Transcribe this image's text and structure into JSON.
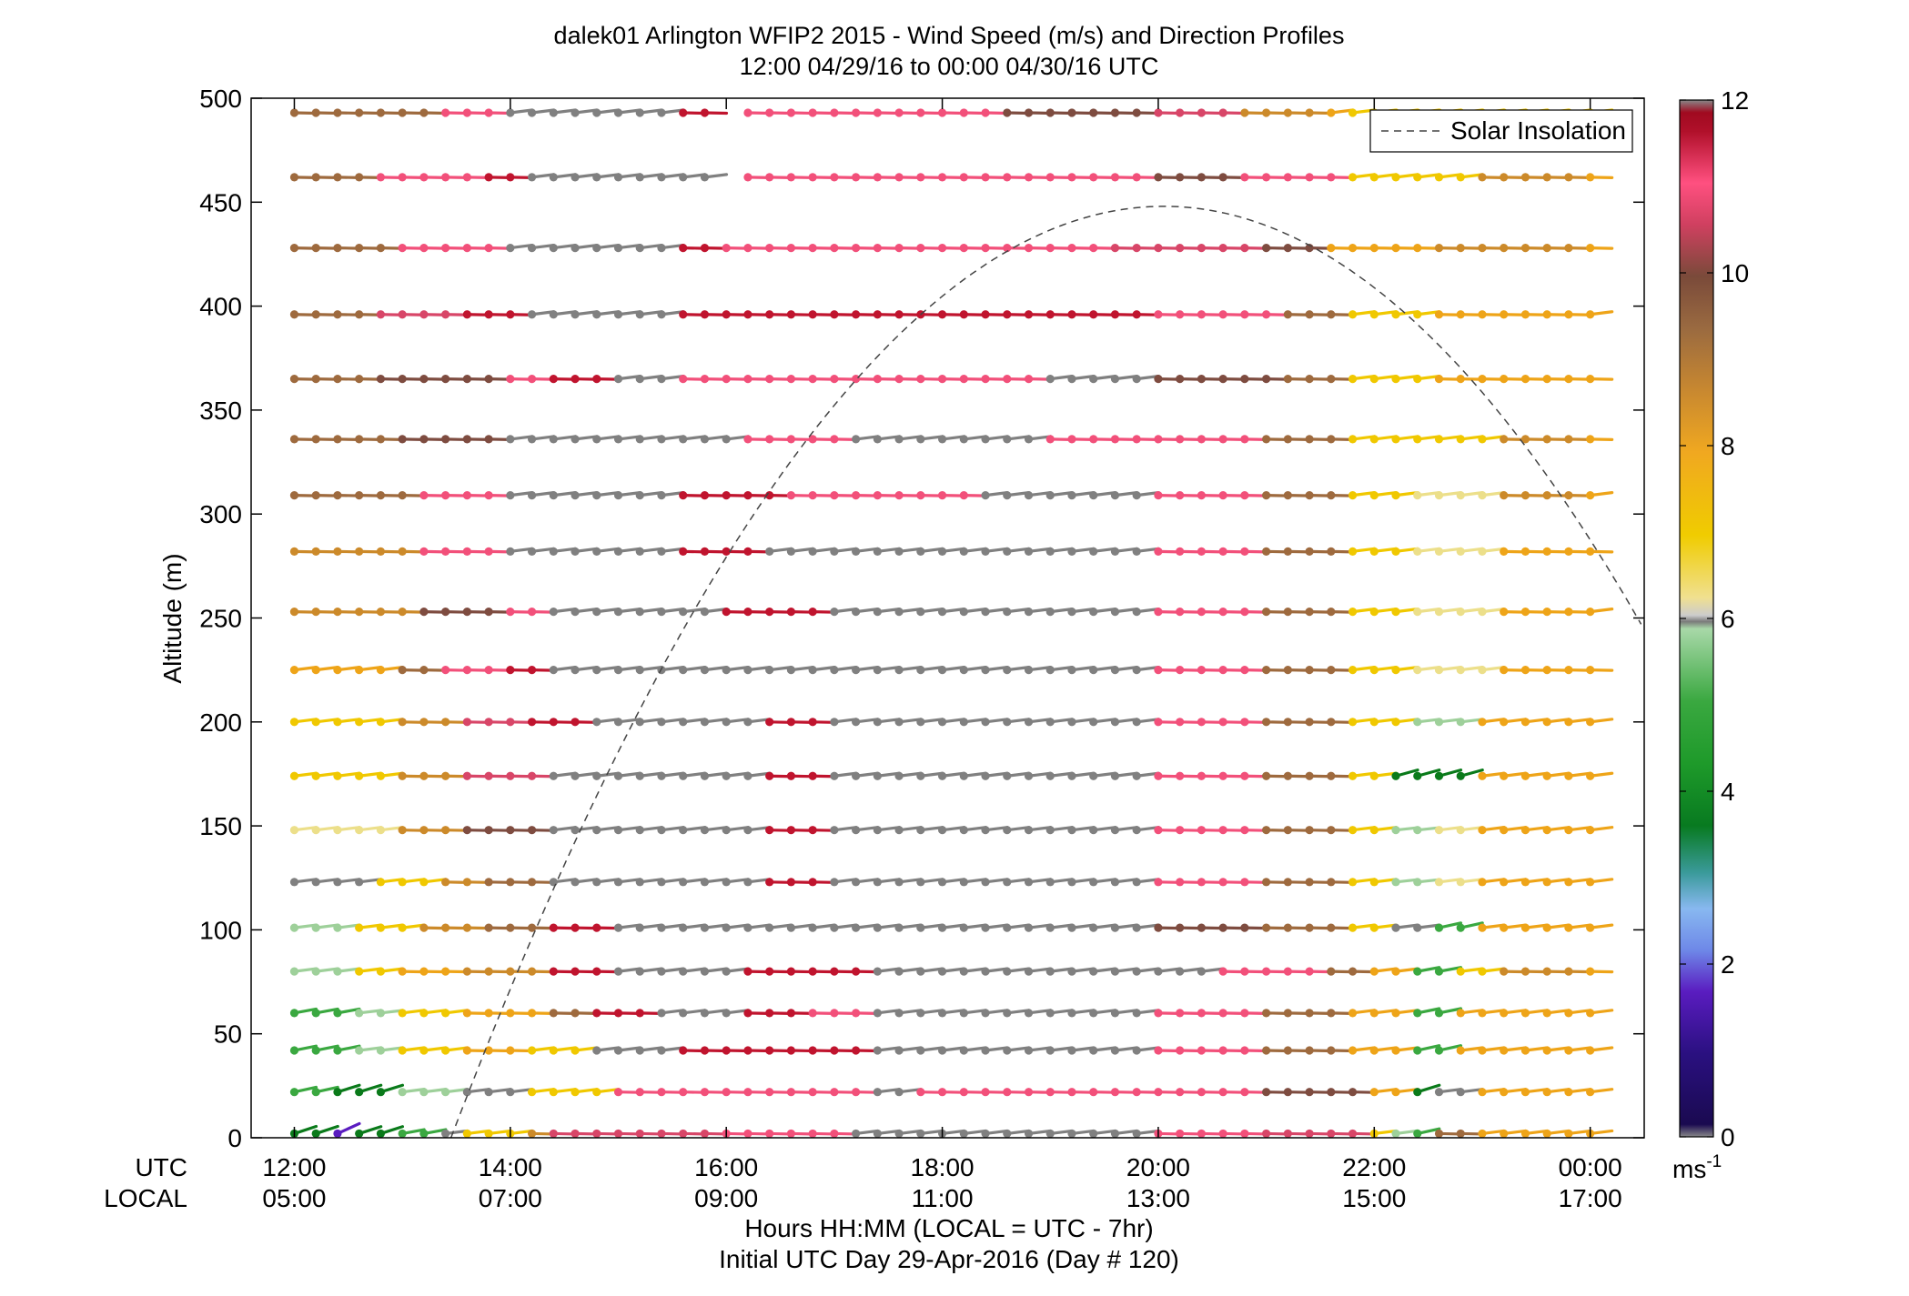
{
  "chart_data": {
    "type": "wind-barb-profile",
    "title": "dalek01 Arlington WFIP2 2015 - Wind Speed (m/s) and Direction Profiles",
    "subtitle": "12:00 04/29/16 to 00:00 04/30/16  UTC",
    "ylabel": "Altitude (m)",
    "xlabel": "Hours HH:MM  (LOCAL = UTC - 7hr)",
    "xlabel2": "Initial UTC Day 29-Apr-2016 (Day # 120)",
    "row_label_utc": "UTC",
    "row_label_local": "LOCAL",
    "x_ticks_utc": [
      "12:00",
      "14:00",
      "16:00",
      "18:00",
      "20:00",
      "22:00",
      "00:00"
    ],
    "x_ticks_local": [
      "05:00",
      "07:00",
      "09:00",
      "11:00",
      "13:00",
      "15:00",
      "17:00"
    ],
    "y_ticks": [
      "0",
      "50",
      "100",
      "150",
      "200",
      "250",
      "300",
      "350",
      "400",
      "450",
      "500"
    ],
    "ylim": [
      0,
      500
    ],
    "xlim_hours": [
      11.6,
      24.5
    ],
    "legend": {
      "entries": [
        "Solar Insolation"
      ],
      "placement": "top-right"
    },
    "colorbar": {
      "ticks": [
        "0",
        "2",
        "4",
        "6",
        "8",
        "10",
        "12"
      ],
      "unit": "ms",
      "unit_sup": "-1",
      "range": [
        0,
        12
      ]
    },
    "solar_insolation": {
      "peak_hour": 20.05,
      "peak_altitude": 448,
      "start_hour": 13.45
    },
    "sample_start_hour": 12.0,
    "sample_step_hours": 0.2,
    "gap_hours": [
      15.8,
      16.2
    ],
    "gap_levels_above": 455,
    "levels": [
      {
        "alt": 493,
        "w": [
          {
            "h": 12.0,
            "s": 9.2
          },
          {
            "h": 13.0,
            "s": 9.6
          },
          {
            "h": 13.4,
            "s": 10.9
          },
          {
            "h": 14.0,
            "s": 6.3
          },
          {
            "h": 15.6,
            "s": 11.7
          },
          {
            "h": 16.2,
            "s": 10.8
          },
          {
            "h": 18.5,
            "s": 10.0
          },
          {
            "h": 20.0,
            "s": 10.6
          },
          {
            "h": 20.8,
            "s": 8.6
          },
          {
            "h": 21.5,
            "s": 7.8
          },
          {
            "h": 21.8,
            "s": 7.1
          },
          {
            "h": 22.6,
            "s": 7.6
          }
        ]
      },
      {
        "alt": 462,
        "w": [
          {
            "h": 12.0,
            "s": 9.3
          },
          {
            "h": 12.8,
            "s": 10.9
          },
          {
            "h": 13.8,
            "s": 11.6
          },
          {
            "h": 14.2,
            "s": 6.3
          },
          {
            "h": 15.6,
            "s": 6.3
          },
          {
            "h": 16.2,
            "s": 10.8
          },
          {
            "h": 20.0,
            "s": 10.0
          },
          {
            "h": 20.8,
            "s": 10.8
          },
          {
            "h": 21.8,
            "s": 7.4
          },
          {
            "h": 23.0,
            "s": 8.6
          },
          {
            "h": 24.0,
            "s": 8.0
          }
        ]
      },
      {
        "alt": 428,
        "w": [
          {
            "h": 12.0,
            "s": 9.4
          },
          {
            "h": 13.0,
            "s": 10.8
          },
          {
            "h": 14.0,
            "s": 6.3
          },
          {
            "h": 15.5,
            "s": 11.5
          },
          {
            "h": 16.0,
            "s": 10.8
          },
          {
            "h": 19.5,
            "s": 10.6
          },
          {
            "h": 21.0,
            "s": 10.0
          },
          {
            "h": 21.5,
            "s": 8.2
          },
          {
            "h": 22.5,
            "s": 8.6
          },
          {
            "h": 24.0,
            "s": 8.2
          }
        ]
      },
      {
        "alt": 396,
        "w": [
          {
            "h": 12.0,
            "s": 9.4
          },
          {
            "h": 12.8,
            "s": 10.6
          },
          {
            "h": 13.6,
            "s": 11.5
          },
          {
            "h": 14.2,
            "s": 6.3
          },
          {
            "h": 15.6,
            "s": 11.6
          },
          {
            "h": 20.0,
            "s": 10.8
          },
          {
            "h": 21.2,
            "s": 9.5
          },
          {
            "h": 21.8,
            "s": 7.4
          },
          {
            "h": 22.5,
            "s": 8.2
          },
          {
            "h": 24.0,
            "s": 7.9
          }
        ]
      },
      {
        "alt": 365,
        "w": [
          {
            "h": 12.0,
            "s": 9.2
          },
          {
            "h": 12.8,
            "s": 10.2
          },
          {
            "h": 14.0,
            "s": 10.9
          },
          {
            "h": 14.4,
            "s": 11.5
          },
          {
            "h": 15.0,
            "s": 6.3
          },
          {
            "h": 15.6,
            "s": 10.8
          },
          {
            "h": 19.0,
            "s": 6.3
          },
          {
            "h": 20.0,
            "s": 10.0
          },
          {
            "h": 21.2,
            "s": 9.5
          },
          {
            "h": 21.8,
            "s": 7.4
          },
          {
            "h": 22.5,
            "s": 8.2
          },
          {
            "h": 24.0,
            "s": 8.0
          }
        ]
      },
      {
        "alt": 336,
        "w": [
          {
            "h": 12.0,
            "s": 9.2
          },
          {
            "h": 13.0,
            "s": 10.0
          },
          {
            "h": 14.0,
            "s": 6.3
          },
          {
            "h": 16.2,
            "s": 11.0
          },
          {
            "h": 17.2,
            "s": 6.3
          },
          {
            "h": 19.0,
            "s": 10.8
          },
          {
            "h": 21.0,
            "s": 9.4
          },
          {
            "h": 21.8,
            "s": 7.4
          },
          {
            "h": 22.5,
            "s": 7.2
          },
          {
            "h": 23.2,
            "s": 8.4
          },
          {
            "h": 24.0,
            "s": 8.0
          }
        ]
      },
      {
        "alt": 309,
        "w": [
          {
            "h": 12.0,
            "s": 9.0
          },
          {
            "h": 13.2,
            "s": 10.9
          },
          {
            "h": 14.0,
            "s": 6.3
          },
          {
            "h": 15.6,
            "s": 11.5
          },
          {
            "h": 16.6,
            "s": 11.0
          },
          {
            "h": 18.4,
            "s": 6.3
          },
          {
            "h": 20.0,
            "s": 10.8
          },
          {
            "h": 21.0,
            "s": 9.5
          },
          {
            "h": 21.8,
            "s": 7.6
          },
          {
            "h": 22.4,
            "s": 6.8
          },
          {
            "h": 23.2,
            "s": 8.4
          },
          {
            "h": 24.0,
            "s": 7.9
          }
        ]
      },
      {
        "alt": 282,
        "w": [
          {
            "h": 12.0,
            "s": 8.4
          },
          {
            "h": 13.2,
            "s": 10.8
          },
          {
            "h": 14.0,
            "s": 6.3
          },
          {
            "h": 15.6,
            "s": 11.5
          },
          {
            "h": 16.4,
            "s": 6.3
          },
          {
            "h": 20.0,
            "s": 10.8
          },
          {
            "h": 21.0,
            "s": 9.6
          },
          {
            "h": 21.8,
            "s": 7.6
          },
          {
            "h": 22.4,
            "s": 6.6
          },
          {
            "h": 23.2,
            "s": 8.2
          },
          {
            "h": 24.0,
            "s": 8.0
          }
        ]
      },
      {
        "alt": 253,
        "w": [
          {
            "h": 12.0,
            "s": 8.6
          },
          {
            "h": 13.2,
            "s": 10.2
          },
          {
            "h": 14.0,
            "s": 11.0
          },
          {
            "h": 14.4,
            "s": 6.3
          },
          {
            "h": 16.0,
            "s": 11.6
          },
          {
            "h": 17.0,
            "s": 6.3
          },
          {
            "h": 20.0,
            "s": 10.8
          },
          {
            "h": 21.0,
            "s": 9.5
          },
          {
            "h": 21.8,
            "s": 7.6
          },
          {
            "h": 22.4,
            "s": 6.6
          },
          {
            "h": 23.2,
            "s": 8.2
          },
          {
            "h": 24.0,
            "s": 7.8
          }
        ]
      },
      {
        "alt": 225,
        "w": [
          {
            "h": 12.0,
            "s": 7.7
          },
          {
            "h": 13.0,
            "s": 9.4
          },
          {
            "h": 13.4,
            "s": 10.9
          },
          {
            "h": 14.0,
            "s": 11.4
          },
          {
            "h": 14.4,
            "s": 6.3
          },
          {
            "h": 20.0,
            "s": 10.8
          },
          {
            "h": 21.0,
            "s": 9.6
          },
          {
            "h": 21.8,
            "s": 7.6
          },
          {
            "h": 22.4,
            "s": 6.6
          },
          {
            "h": 23.2,
            "s": 8.0
          }
        ]
      },
      {
        "alt": 200,
        "w": [
          {
            "h": 12.0,
            "s": 7.4
          },
          {
            "h": 13.0,
            "s": 8.6
          },
          {
            "h": 13.6,
            "s": 10.4
          },
          {
            "h": 14.2,
            "s": 11.2
          },
          {
            "h": 14.8,
            "s": 6.3
          },
          {
            "h": 16.4,
            "s": 11.5
          },
          {
            "h": 17.0,
            "s": 6.3
          },
          {
            "h": 20.0,
            "s": 10.8
          },
          {
            "h": 21.0,
            "s": 9.6
          },
          {
            "h": 21.8,
            "s": 7.6
          },
          {
            "h": 22.4,
            "s": 5.7
          },
          {
            "h": 23.0,
            "s": 7.8
          }
        ]
      },
      {
        "alt": 174,
        "w": [
          {
            "h": 12.0,
            "s": 7.3
          },
          {
            "h": 13.0,
            "s": 8.4
          },
          {
            "h": 13.6,
            "s": 10.6
          },
          {
            "h": 14.4,
            "s": 6.3
          },
          {
            "h": 16.4,
            "s": 11.5
          },
          {
            "h": 17.0,
            "s": 6.3
          },
          {
            "h": 20.0,
            "s": 10.8
          },
          {
            "h": 21.0,
            "s": 9.5
          },
          {
            "h": 21.8,
            "s": 7.6
          },
          {
            "h": 22.2,
            "s": 4.0
          },
          {
            "h": 23.0,
            "s": 7.8
          }
        ]
      },
      {
        "alt": 148,
        "w": [
          {
            "h": 12.0,
            "s": 6.8
          },
          {
            "h": 13.0,
            "s": 8.4
          },
          {
            "h": 13.6,
            "s": 9.8
          },
          {
            "h": 14.4,
            "s": 6.3
          },
          {
            "h": 16.4,
            "s": 11.5
          },
          {
            "h": 17.0,
            "s": 6.3
          },
          {
            "h": 20.0,
            "s": 10.8
          },
          {
            "h": 21.0,
            "s": 9.5
          },
          {
            "h": 21.8,
            "s": 7.6
          },
          {
            "h": 22.2,
            "s": 5.8
          },
          {
            "h": 22.6,
            "s": 6.6
          },
          {
            "h": 23.0,
            "s": 7.8
          }
        ]
      },
      {
        "alt": 123,
        "w": [
          {
            "h": 12.0,
            "s": 6.2
          },
          {
            "h": 12.8,
            "s": 7.6
          },
          {
            "h": 13.4,
            "s": 8.6
          },
          {
            "h": 13.8,
            "s": 9.6
          },
          {
            "h": 14.4,
            "s": 6.3
          },
          {
            "h": 16.4,
            "s": 11.5
          },
          {
            "h": 17.0,
            "s": 6.3
          },
          {
            "h": 20.0,
            "s": 10.8
          },
          {
            "h": 21.0,
            "s": 9.5
          },
          {
            "h": 21.8,
            "s": 7.6
          },
          {
            "h": 22.2,
            "s": 5.8
          },
          {
            "h": 22.6,
            "s": 6.6
          },
          {
            "h": 23.0,
            "s": 7.8
          }
        ]
      },
      {
        "alt": 101,
        "w": [
          {
            "h": 12.0,
            "s": 5.6
          },
          {
            "h": 12.6,
            "s": 7.2
          },
          {
            "h": 13.2,
            "s": 8.6
          },
          {
            "h": 13.8,
            "s": 9.6
          },
          {
            "h": 14.4,
            "s": 11.3
          },
          {
            "h": 15.0,
            "s": 6.3
          },
          {
            "h": 20.0,
            "s": 10.2
          },
          {
            "h": 21.0,
            "s": 9.4
          },
          {
            "h": 21.8,
            "s": 7.6
          },
          {
            "h": 22.2,
            "s": 6.3
          },
          {
            "h": 22.6,
            "s": 4.6
          },
          {
            "h": 23.0,
            "s": 7.8
          }
        ]
      },
      {
        "alt": 80,
        "w": [
          {
            "h": 12.0,
            "s": 5.6
          },
          {
            "h": 12.6,
            "s": 7.0
          },
          {
            "h": 13.0,
            "s": 8.2
          },
          {
            "h": 13.6,
            "s": 8.8
          },
          {
            "h": 14.4,
            "s": 11.4
          },
          {
            "h": 15.0,
            "s": 6.3
          },
          {
            "h": 16.2,
            "s": 11.5
          },
          {
            "h": 17.4,
            "s": 6.3
          },
          {
            "h": 20.6,
            "s": 10.9
          },
          {
            "h": 21.6,
            "s": 9.4
          },
          {
            "h": 22.0,
            "s": 7.8
          },
          {
            "h": 22.4,
            "s": 5.0
          },
          {
            "h": 22.8,
            "s": 7.6
          },
          {
            "h": 23.2,
            "s": 8.4
          },
          {
            "h": 24.0,
            "s": 8.0
          }
        ]
      },
      {
        "alt": 60,
        "w": [
          {
            "h": 12.0,
            "s": 5.0
          },
          {
            "h": 12.6,
            "s": 5.7
          },
          {
            "h": 13.0,
            "s": 7.6
          },
          {
            "h": 13.6,
            "s": 8.2
          },
          {
            "h": 14.4,
            "s": 9.4
          },
          {
            "h": 14.8,
            "s": 11.5
          },
          {
            "h": 15.4,
            "s": 6.3
          },
          {
            "h": 16.2,
            "s": 11.5
          },
          {
            "h": 16.8,
            "s": 10.8
          },
          {
            "h": 17.4,
            "s": 6.3
          },
          {
            "h": 20.0,
            "s": 10.8
          },
          {
            "h": 21.0,
            "s": 9.4
          },
          {
            "h": 21.8,
            "s": 7.8
          },
          {
            "h": 22.4,
            "s": 4.8
          },
          {
            "h": 22.8,
            "s": 7.8
          }
        ]
      },
      {
        "alt": 42,
        "w": [
          {
            "h": 12.0,
            "s": 4.8
          },
          {
            "h": 12.6,
            "s": 5.6
          },
          {
            "h": 13.0,
            "s": 7.6
          },
          {
            "h": 13.6,
            "s": 8.0
          },
          {
            "h": 14.2,
            "s": 7.6
          },
          {
            "h": 14.8,
            "s": 6.3
          },
          {
            "h": 15.6,
            "s": 11.5
          },
          {
            "h": 17.4,
            "s": 6.3
          },
          {
            "h": 20.0,
            "s": 10.8
          },
          {
            "h": 21.0,
            "s": 9.4
          },
          {
            "h": 21.8,
            "s": 7.8
          },
          {
            "h": 22.4,
            "s": 4.6
          },
          {
            "h": 22.8,
            "s": 7.8
          }
        ]
      },
      {
        "alt": 22,
        "w": [
          {
            "h": 12.0,
            "s": 4.6
          },
          {
            "h": 12.4,
            "s": 3.6
          },
          {
            "h": 13.0,
            "s": 5.6
          },
          {
            "h": 13.6,
            "s": 6.4
          },
          {
            "h": 14.2,
            "s": 7.6
          },
          {
            "h": 15.0,
            "s": 10.8
          },
          {
            "h": 17.4,
            "s": 6.3
          },
          {
            "h": 17.8,
            "s": 10.8
          },
          {
            "h": 20.0,
            "s": 10.8
          },
          {
            "h": 21.0,
            "s": 10.0
          },
          {
            "h": 22.0,
            "s": 7.8
          },
          {
            "h": 22.4,
            "s": 3.6
          },
          {
            "h": 22.6,
            "s": 6.4
          },
          {
            "h": 23.0,
            "s": 7.8
          }
        ]
      },
      {
        "alt": 2,
        "w": [
          {
            "h": 12.0,
            "s": 3.4
          },
          {
            "h": 12.4,
            "s": 2.0
          },
          {
            "h": 12.6,
            "s": 3.5
          },
          {
            "h": 13.0,
            "s": 5.0
          },
          {
            "h": 13.4,
            "s": 6.3
          },
          {
            "h": 13.6,
            "s": 7.2
          },
          {
            "h": 14.0,
            "s": 7.6
          },
          {
            "h": 14.2,
            "s": 8.6
          },
          {
            "h": 14.4,
            "s": 10.6
          },
          {
            "h": 16.0,
            "s": 10.9
          },
          {
            "h": 17.2,
            "s": 6.3
          },
          {
            "h": 20.0,
            "s": 10.8
          },
          {
            "h": 21.0,
            "s": 10.6
          },
          {
            "h": 22.0,
            "s": 7.2
          },
          {
            "h": 22.2,
            "s": 5.6
          },
          {
            "h": 22.4,
            "s": 4.6
          },
          {
            "h": 22.6,
            "s": 9.4
          },
          {
            "h": 23.0,
            "s": 7.8
          }
        ]
      }
    ]
  }
}
